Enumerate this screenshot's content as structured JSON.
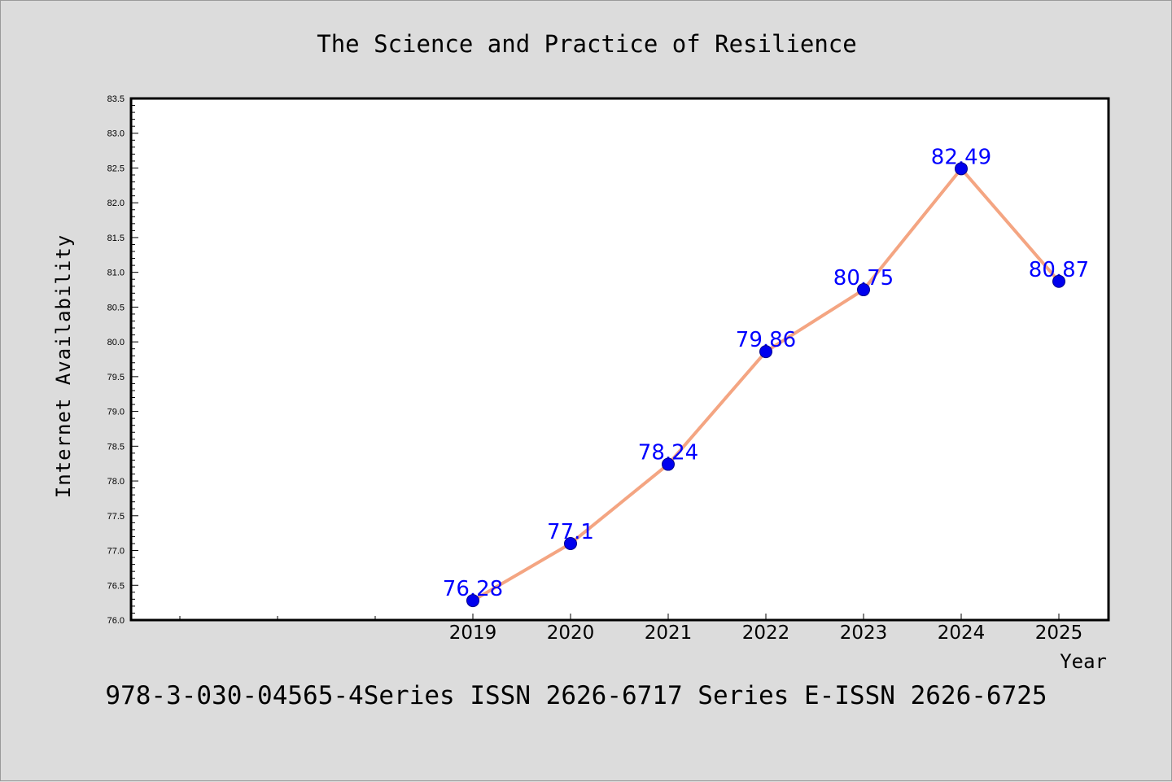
{
  "chart_data": {
    "type": "line",
    "title": "The Science and Practice of Resilience",
    "xlabel": "Year",
    "ylabel": "Internet Availability",
    "x": [
      "2019",
      "2020",
      "2021",
      "2022",
      "2023",
      "2024",
      "2025"
    ],
    "series": [
      {
        "values": [
          76.28,
          77.1,
          78.24,
          79.86,
          80.75,
          82.49,
          80.87
        ],
        "labels": [
          "76.28",
          "77.1",
          "78.24",
          "79.86",
          "80.75",
          "82.49",
          "80.87"
        ]
      }
    ],
    "ylim": [
      76.0,
      83.5
    ],
    "yticks": [
      "76.0",
      "76.5",
      "77.0",
      "77.5",
      "78.0",
      "78.5",
      "79.0",
      "79.5",
      "80.0",
      "80.5",
      "81.0",
      "81.5",
      "82.0",
      "82.5",
      "83.0",
      "83.5"
    ],
    "grid": false,
    "footer": "978-3-030-04565-4Series ISSN 2626-6717 Series E-ISSN 2626-6725",
    "colors": {
      "line": "#f4a582",
      "marker": "#0000ee",
      "data_label": "#0000ff",
      "background": "#dcdcdc",
      "plot_bg": "#ffffff"
    }
  }
}
